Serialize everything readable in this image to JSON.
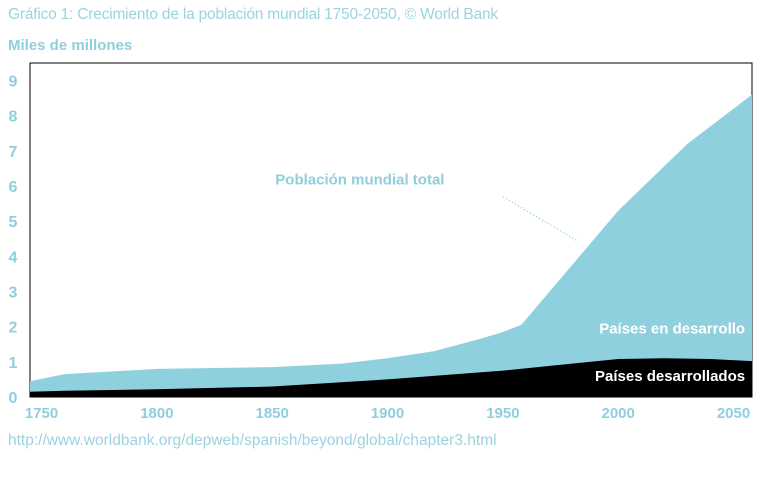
{
  "title": "Gráfico 1: Crecimiento de la población mundial 1750-2050, © World Bank",
  "source": "http://www.worldbank.org/depweb/spanish/beyond/global/chapter3.html",
  "colors": {
    "total": "#8fd0df",
    "developed": "#000000",
    "text_light": "#8fcfdd",
    "text_white": "#ffffff"
  },
  "chart_data": {
    "type": "area",
    "title": "Gráfico 1: Crecimiento de la población mundial 1750-2050, © World Bank",
    "xlabel": "",
    "ylabel": "Miles de millones",
    "xlim": [
      1745,
      2058
    ],
    "ylim": [
      0,
      9.5
    ],
    "x_ticks": [
      1750,
      1800,
      1850,
      1900,
      1950,
      2000,
      2050
    ],
    "y_ticks": [
      0,
      1,
      2,
      3,
      4,
      5,
      6,
      7,
      8,
      9
    ],
    "grid": false,
    "series": [
      {
        "name": "Población mundial total",
        "x": [
          1745,
          1760,
          1800,
          1850,
          1880,
          1900,
          1920,
          1940,
          1950,
          1958,
          2000,
          2030,
          2058
        ],
        "values": [
          0.45,
          0.65,
          0.8,
          0.85,
          0.95,
          1.1,
          1.3,
          1.65,
          1.85,
          2.05,
          5.3,
          7.2,
          8.6
        ]
      },
      {
        "name": "Países desarrollados",
        "x": [
          1745,
          1760,
          1800,
          1850,
          1900,
          1950,
          1980,
          2000,
          2020,
          2040,
          2058
        ],
        "values": [
          0.15,
          0.18,
          0.22,
          0.3,
          0.5,
          0.75,
          0.95,
          1.08,
          1.1,
          1.08,
          1.02
        ]
      }
    ],
    "annotations": [
      {
        "text": "Población mundial total",
        "x": 1888,
        "y": 6.05
      },
      {
        "text": "Países en desarrollo",
        "x": 2055,
        "y": 1.8
      },
      {
        "text": "Países desarrollados",
        "x": 2055,
        "y": 0.45
      }
    ]
  }
}
